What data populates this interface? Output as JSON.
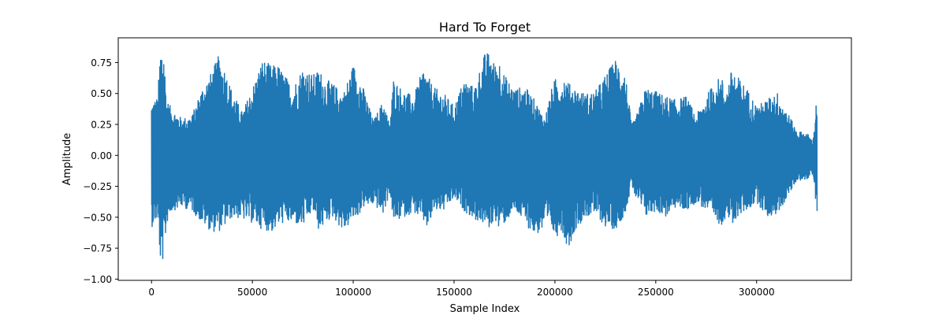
{
  "chart_data": {
    "type": "line",
    "title": "Hard To Forget",
    "xlabel": "Sample Index",
    "ylabel": "Amplitude",
    "xlim": [
      -16500,
      347000
    ],
    "ylim": [
      -1.01,
      0.95
    ],
    "xticks": [
      0,
      50000,
      100000,
      150000,
      200000,
      250000,
      300000
    ],
    "xtick_labels": [
      "0",
      "50000",
      "100000",
      "150000",
      "200000",
      "250000",
      "300000"
    ],
    "yticks": [
      0.75,
      0.5,
      0.25,
      0.0,
      -0.25,
      -0.5,
      -0.75,
      -1.0
    ],
    "ytick_labels": [
      "0.75",
      "0.50",
      "0.25",
      "0.00",
      "−0.25",
      "−0.50",
      "−0.75",
      "−1.00"
    ],
    "grid": false,
    "legend": "none",
    "series": [
      {
        "color": "#1f77b4",
        "envelope_x": [
          0,
          3000,
          4500,
          6000,
          7500,
          10000,
          15000,
          20000,
          25000,
          30000,
          33000,
          36000,
          40000,
          45000,
          50000,
          55000,
          60000,
          62000,
          65000,
          70000,
          75000,
          80000,
          83000,
          86000,
          90000,
          95000,
          100000,
          102000,
          105000,
          110000,
          115000,
          118000,
          120000,
          125000,
          130000,
          135000,
          137000,
          140000,
          145000,
          150000,
          155000,
          160000,
          165000,
          168000,
          170000,
          172000,
          175000,
          180000,
          185000,
          190000,
          195000,
          198000,
          200000,
          203000,
          205000,
          207000,
          210000,
          215000,
          220000,
          225000,
          230000,
          233000,
          235000,
          238000,
          240000,
          245000,
          250000,
          255000,
          260000,
          265000,
          270000,
          275000,
          280000,
          283000,
          285000,
          288000,
          290000,
          295000,
          300000,
          305000,
          310000,
          315000,
          320000,
          325000,
          328000,
          330000
        ],
        "envelope_max": [
          0.43,
          0.47,
          0.89,
          0.88,
          0.45,
          0.38,
          0.3,
          0.32,
          0.55,
          0.68,
          0.8,
          0.72,
          0.52,
          0.35,
          0.55,
          0.78,
          0.72,
          0.75,
          0.68,
          0.55,
          0.72,
          0.65,
          0.7,
          0.62,
          0.58,
          0.5,
          0.74,
          0.68,
          0.55,
          0.28,
          0.45,
          0.25,
          0.62,
          0.52,
          0.48,
          0.72,
          0.64,
          0.55,
          0.5,
          0.4,
          0.62,
          0.55,
          0.82,
          0.84,
          0.74,
          0.8,
          0.65,
          0.54,
          0.56,
          0.45,
          0.3,
          0.52,
          0.62,
          0.6,
          0.65,
          0.58,
          0.55,
          0.5,
          0.52,
          0.65,
          0.78,
          0.73,
          0.66,
          0.25,
          0.3,
          0.55,
          0.52,
          0.48,
          0.45,
          0.48,
          0.32,
          0.48,
          0.62,
          0.62,
          0.52,
          0.72,
          0.65,
          0.55,
          0.4,
          0.45,
          0.52,
          0.36,
          0.2,
          0.18,
          0.12,
          0.52
        ],
        "envelope_min": [
          -0.58,
          -0.52,
          -0.92,
          -0.82,
          -0.55,
          -0.45,
          -0.42,
          -0.45,
          -0.55,
          -0.62,
          -0.62,
          -0.58,
          -0.5,
          -0.52,
          -0.55,
          -0.6,
          -0.62,
          -0.58,
          -0.55,
          -0.55,
          -0.58,
          -0.45,
          -0.62,
          -0.55,
          -0.5,
          -0.62,
          -0.52,
          -0.5,
          -0.42,
          -0.4,
          -0.48,
          -0.3,
          -0.55,
          -0.5,
          -0.46,
          -0.55,
          -0.6,
          -0.45,
          -0.45,
          -0.35,
          -0.45,
          -0.52,
          -0.56,
          -0.6,
          -0.5,
          -0.6,
          -0.55,
          -0.45,
          -0.55,
          -0.65,
          -0.6,
          -0.58,
          -0.68,
          -0.6,
          -0.7,
          -0.74,
          -0.6,
          -0.5,
          -0.48,
          -0.58,
          -0.6,
          -0.52,
          -0.45,
          -0.25,
          -0.35,
          -0.5,
          -0.45,
          -0.5,
          -0.42,
          -0.45,
          -0.38,
          -0.45,
          -0.55,
          -0.56,
          -0.48,
          -0.6,
          -0.5,
          -0.45,
          -0.38,
          -0.5,
          -0.48,
          -0.35,
          -0.2,
          -0.2,
          -0.15,
          -0.52
        ]
      }
    ]
  }
}
